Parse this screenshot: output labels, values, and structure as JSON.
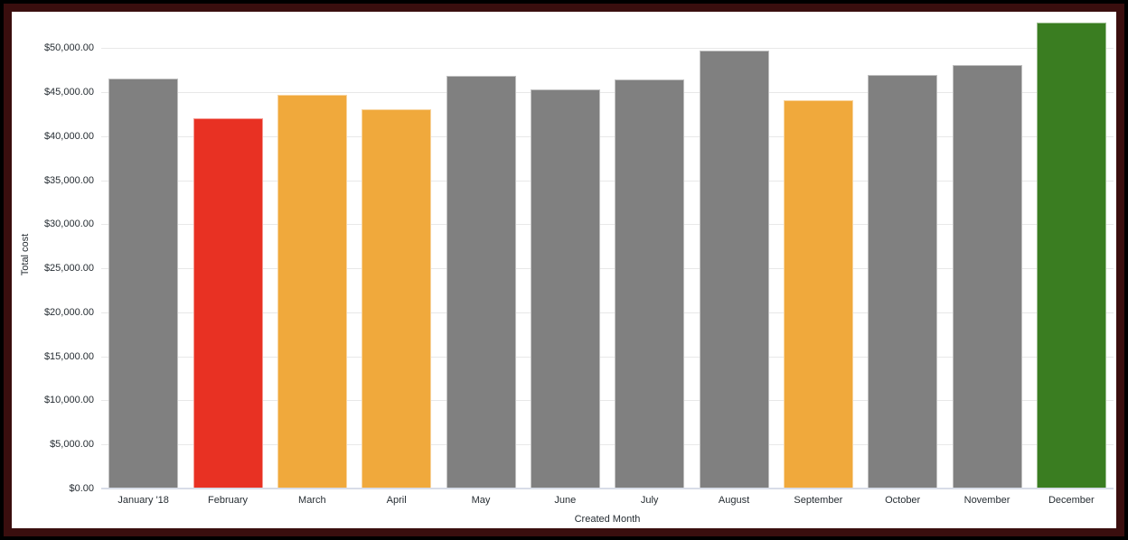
{
  "chart_data": {
    "type": "bar",
    "title": "",
    "xlabel": "Created Month",
    "ylabel": "Total cost",
    "categories": [
      "January '18",
      "February",
      "March",
      "April",
      "May",
      "June",
      "July",
      "August",
      "September",
      "October",
      "November",
      "December"
    ],
    "values": [
      46500,
      42000,
      44700,
      43100,
      46900,
      45300,
      46400,
      49700,
      44100,
      47000,
      48100,
      52900
    ],
    "bar_colors": [
      "#808080",
      "#E83123",
      "#F0A93C",
      "#F0A93C",
      "#808080",
      "#808080",
      "#808080",
      "#808080",
      "#F0A93C",
      "#808080",
      "#808080",
      "#3A7D21"
    ],
    "ylim": [
      0,
      53000
    ],
    "ytick_step": 5000,
    "ytick_labels": [
      "$0.00",
      "$5,000.00",
      "$10,000.00",
      "$15,000.00",
      "$20,000.00",
      "$25,000.00",
      "$30,000.00",
      "$35,000.00",
      "$40,000.00",
      "$45,000.00",
      "$50,000.00"
    ],
    "grid": true,
    "legend": "none"
  },
  "colors": {
    "frame_border": "#3A0E0E",
    "outer_edge": "#000000",
    "plot_background": "#FFFFFF",
    "gridline": "#E8E8E8",
    "axis_line": "#D8DDE8",
    "text": "#262D33"
  }
}
